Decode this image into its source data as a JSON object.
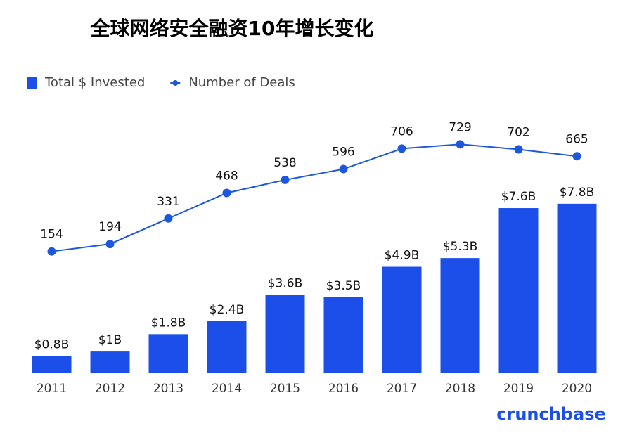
{
  "chart_data": {
    "type": "bar",
    "title": "全球网络安全融资10年增长变化",
    "categories": [
      "2011",
      "2012",
      "2013",
      "2014",
      "2015",
      "2016",
      "2017",
      "2018",
      "2019",
      "2020"
    ],
    "series": [
      {
        "name": "Total $ Invested",
        "type": "bar",
        "color": "#1c4fea",
        "values": [
          0.8,
          1,
          1.8,
          2.4,
          3.6,
          3.5,
          4.9,
          5.3,
          7.6,
          7.8
        ],
        "value_labels": [
          "$0.8B",
          "$1B",
          "$1.8B",
          "$2.4B",
          "$3.6B",
          "$3.5B",
          "$4.9B",
          "$5.3B",
          "$7.6B",
          "$7.8B"
        ]
      },
      {
        "name": "Number of Deals",
        "type": "line",
        "axis": "y2",
        "color": "#1c57de",
        "values": [
          154,
          194,
          331,
          468,
          538,
          596,
          706,
          729,
          702,
          665
        ]
      }
    ],
    "ylim": [
      0,
      12
    ],
    "y2lim": [
      -500,
      900
    ],
    "legend": "top-left",
    "source": "crunchbase"
  }
}
